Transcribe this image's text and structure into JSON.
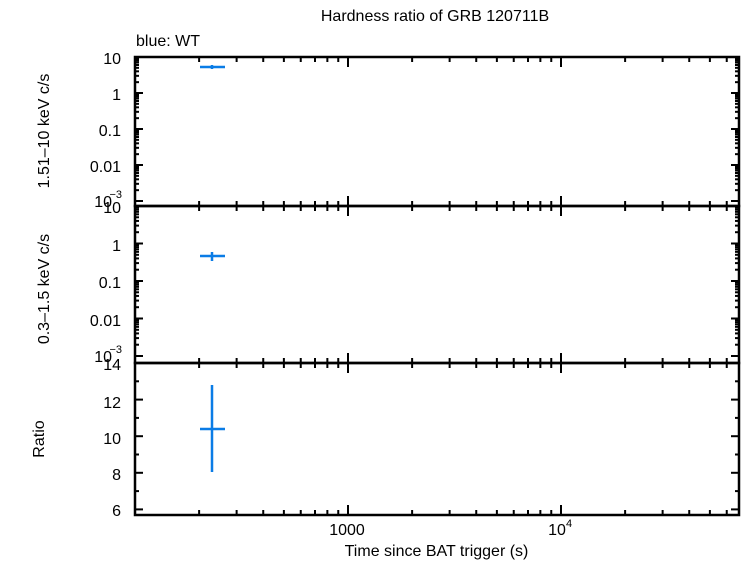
{
  "chart_data": [
    {
      "type": "scatter",
      "title": "Hardness ratio of GRB 120711B",
      "panel": "hard band",
      "xlabel": "Time since BAT trigger (s)",
      "ylabel": "1.51–10 keV c/s",
      "xscale": "log",
      "yscale": "log",
      "xlim": [
        100,
        69000
      ],
      "ylim": [
        0.001,
        10
      ],
      "yticks": [
        "10",
        "1",
        "0.1",
        "0.01",
        "10⁻³"
      ],
      "legend": "blue: WT",
      "series": [
        {
          "name": "WT",
          "color": "#0a7ce6",
          "points": [
            {
              "x": 232,
              "x_lo": 205,
              "x_hi": 267,
              "y": 5.3,
              "y_lo": 5.0,
              "y_hi": 5.6
            }
          ]
        }
      ]
    },
    {
      "type": "scatter",
      "panel": "soft band",
      "xlabel": "Time since BAT trigger (s)",
      "ylabel": "0.3–1.5 keV c/s",
      "xscale": "log",
      "yscale": "log",
      "xlim": [
        100,
        69000
      ],
      "ylim": [
        0.001,
        10
      ],
      "yticks": [
        "10",
        "1",
        "0.1",
        "0.01",
        "10⁻³"
      ],
      "series": [
        {
          "name": "WT",
          "color": "#0a7ce6",
          "points": [
            {
              "x": 232,
              "x_lo": 205,
              "x_hi": 267,
              "y": 0.5,
              "y_lo": 0.42,
              "y_hi": 0.6
            }
          ]
        }
      ]
    },
    {
      "type": "scatter",
      "panel": "ratio",
      "xlabel": "Time since BAT trigger (s)",
      "ylabel": "Ratio",
      "xscale": "log",
      "yscale": "linear",
      "xlim": [
        100,
        69000
      ],
      "ylim": [
        5.8,
        14
      ],
      "yticks": [
        "14",
        "12",
        "10",
        "8",
        "6"
      ],
      "xticks": [
        "1000",
        "10⁴"
      ],
      "series": [
        {
          "name": "WT",
          "color": "#0a7ce6",
          "points": [
            {
              "x": 232,
              "x_lo": 205,
              "x_hi": 267,
              "y": 10.4,
              "y_lo": 8.1,
              "y_hi": 12.8
            }
          ]
        }
      ]
    }
  ],
  "labels": {
    "title": "Hardness ratio of GRB 120711B",
    "legend": "blue: WT",
    "ylabel_top": "1.51–10 keV c/s",
    "ylabel_mid": "0.3–1.5 keV c/s",
    "ylabel_bottom": "Ratio",
    "xlabel": "Time since BAT trigger (s)",
    "log_ticks": {
      "t10": "10",
      "t1": "1",
      "t01": "0.1",
      "t001": "0.01",
      "t0001_base": "10",
      "t0001_exp": "−3"
    },
    "ratio_ticks": {
      "t14": "14",
      "t12": "12",
      "t10": "10",
      "t8": "8",
      "t6": "6"
    },
    "x_ticks": {
      "t1000": "1000",
      "t1e4_base": "10",
      "t1e4_exp": "4"
    }
  },
  "colors": {
    "series": "#0a7ce6",
    "axis": "#000000"
  }
}
